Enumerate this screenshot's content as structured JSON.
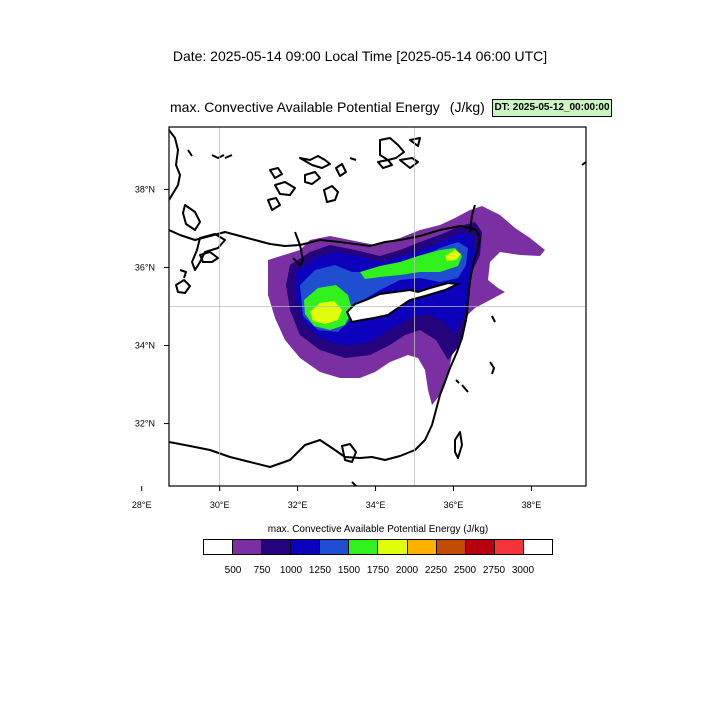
{
  "header": {
    "date_line": "Date: 2025-05-14  09:00 Local Time [2025-05-14  06:00 UTC]",
    "plot_title": "max. Convective Available Potential Energy",
    "plot_unit": "(J/kg)",
    "dt_badge": "DT: 2025-05-12_00:00:00"
  },
  "map": {
    "lon_range": [
      28.7,
      39.4
    ],
    "lat_range": [
      30.4,
      39.6
    ],
    "lon_ticks": [
      "28°E",
      "30°E",
      "32°E",
      "34°E",
      "36°E",
      "38°E"
    ],
    "lat_ticks": [
      "32°N",
      "34°N",
      "36°N",
      "38°N"
    ],
    "gridlines": {
      "lon": [
        30,
        35
      ],
      "lat": [
        35
      ]
    },
    "field": "CAPE",
    "cape_regions": [
      {
        "level": 500,
        "color": "#7a2fa3"
      },
      {
        "level": 750,
        "color": "#24037d"
      },
      {
        "level": 1000,
        "color": "#0d00bd"
      },
      {
        "level": 1250,
        "color": "#1f4ed1"
      },
      {
        "level": 1500,
        "color": "#31f11c"
      },
      {
        "level": 1750,
        "color": "#e1ff0b"
      }
    ]
  },
  "legend": {
    "title": "max. Convective Available Potential Energy  (J/kg)",
    "colors": [
      "#ffffff",
      "#7a2fa3",
      "#24037d",
      "#0d00bd",
      "#1f4ed1",
      "#31f11c",
      "#e1ff0b",
      "#ffb000",
      "#c24d00",
      "#b8000e",
      "#f5343a",
      "#ffffff"
    ],
    "labels": [
      "500",
      "750",
      "1000",
      "1250",
      "1500",
      "1750",
      "2000",
      "2250",
      "2500",
      "2750",
      "3000"
    ]
  }
}
